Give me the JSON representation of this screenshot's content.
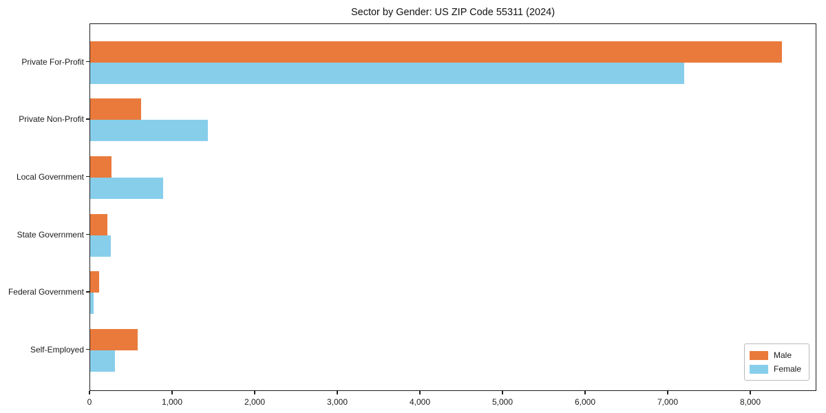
{
  "chart_data": {
    "type": "bar",
    "orientation": "horizontal",
    "title": "Sector by Gender: US ZIP Code 55311 (2024)",
    "categories": [
      "Private For-Profit",
      "Private Non-Profit",
      "Local Government",
      "State Government",
      "Federal Government",
      "Self-Employed"
    ],
    "series": [
      {
        "name": "Male",
        "color": "#E97A3C",
        "values": [
          8375,
          620,
          260,
          210,
          110,
          575
        ]
      },
      {
        "name": "Female",
        "color": "#87CEEB",
        "values": [
          7190,
          1425,
          885,
          250,
          40,
          300
        ]
      }
    ],
    "xlabel": "",
    "ylabel": "",
    "xlim": [
      0,
      8800
    ],
    "x_ticks": [
      0,
      1000,
      2000,
      3000,
      4000,
      5000,
      6000,
      7000,
      8000
    ],
    "x_tick_labels": [
      "0",
      "1,000",
      "2,000",
      "3,000",
      "4,000",
      "5,000",
      "6,000",
      "7,000",
      "8,000"
    ],
    "grid": false,
    "legend_position": "lower right"
  }
}
